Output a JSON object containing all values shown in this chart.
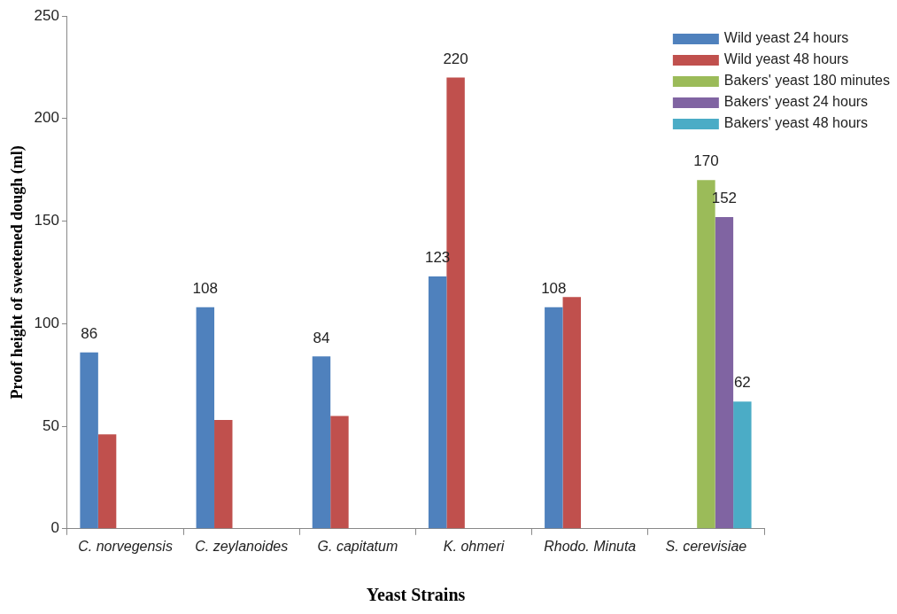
{
  "chart_data": {
    "type": "bar",
    "xlabel": "Yeast Strains",
    "ylabel": "Proof height of sweetened dough (ml)",
    "categories": [
      "C. norvegensis",
      "C. zeylanoides",
      "G. capitatum",
      "K. ohmeri",
      "Rhodo. Minuta",
      "S. cerevisiae"
    ],
    "series": [
      {
        "name": "Wild yeast 24 hours",
        "color": "#4f81bd",
        "values": [
          86,
          108,
          84,
          123,
          108,
          null
        ],
        "value_labels": [
          "86",
          "108",
          "84",
          "123",
          "108",
          null
        ]
      },
      {
        "name": "Wild yeast 48 hours",
        "color": "#c0504d",
        "values": [
          46,
          53,
          55,
          220,
          113,
          null
        ],
        "value_labels": [
          null,
          null,
          null,
          "220",
          null,
          null
        ]
      },
      {
        "name": "Bakers' yeast 180 minutes",
        "color": "#9bbb59",
        "values": [
          null,
          null,
          null,
          null,
          null,
          170
        ],
        "value_labels": [
          null,
          null,
          null,
          null,
          null,
          "170"
        ]
      },
      {
        "name": "Bakers' yeast 24 hours",
        "color": "#8064a2",
        "values": [
          null,
          null,
          null,
          null,
          null,
          152
        ],
        "value_labels": [
          null,
          null,
          null,
          null,
          null,
          "152"
        ]
      },
      {
        "name": "Bakers' yeast 48 hours",
        "color": "#4bacc6",
        "values": [
          null,
          null,
          null,
          null,
          null,
          62
        ],
        "value_labels": [
          null,
          null,
          null,
          null,
          null,
          "62"
        ]
      }
    ],
    "ylim": [
      0,
      250
    ],
    "yticks": [
      0,
      50,
      100,
      150,
      200,
      250
    ],
    "grid": false,
    "legend": "top right"
  }
}
